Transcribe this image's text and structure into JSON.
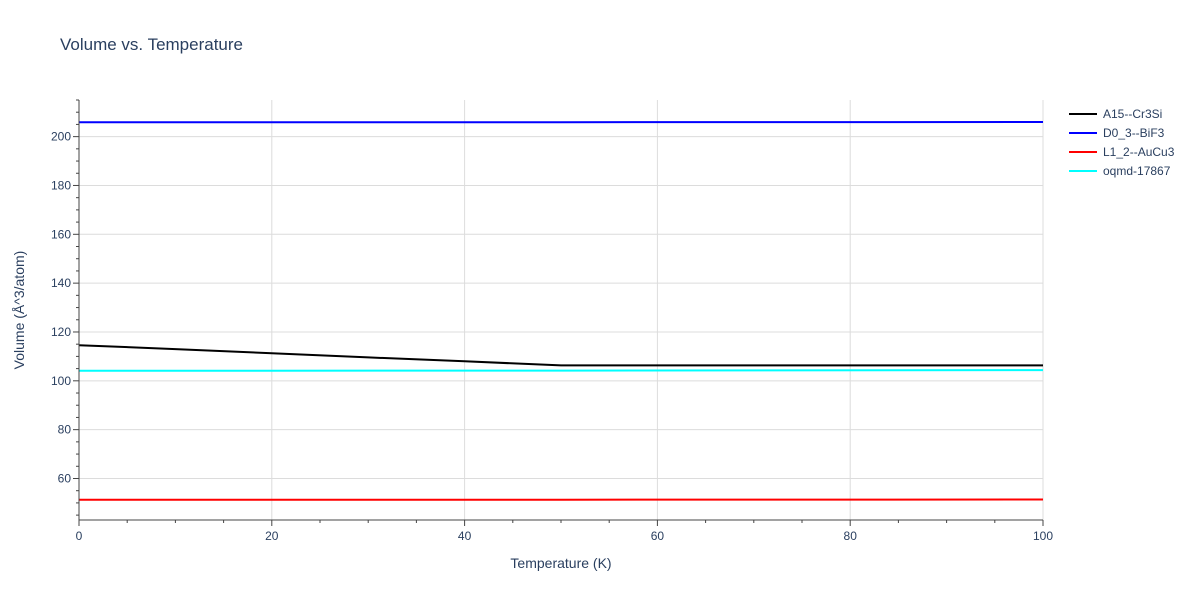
{
  "chart_data": {
    "type": "line",
    "title": "Volume vs. Temperature",
    "xlabel": "Temperature (K)",
    "ylabel": "Volume (Å^3/atom)",
    "xlim": [
      0,
      100
    ],
    "ylim": [
      43,
      215
    ],
    "xticks": [
      0,
      20,
      40,
      60,
      80,
      100
    ],
    "yticks": [
      60,
      80,
      100,
      120,
      140,
      160,
      180,
      200
    ],
    "grid": true,
    "legend_position": "top-right",
    "series": [
      {
        "name": "A15--Cr3Si",
        "color": "#000000",
        "x": [
          0,
          10,
          20,
          30,
          40,
          50,
          60,
          70,
          80,
          90,
          100
        ],
        "y": [
          114.6,
          113.0,
          111.3,
          109.6,
          108.0,
          106.3,
          106.3,
          106.3,
          106.3,
          106.3,
          106.3
        ]
      },
      {
        "name": "D0_3--BiF3",
        "color": "#0000ff",
        "x": [
          0,
          50,
          100
        ],
        "y": [
          205.9,
          205.9,
          206.0
        ]
      },
      {
        "name": "L1_2--AuCu3",
        "color": "#ff0000",
        "x": [
          0,
          50,
          100
        ],
        "y": [
          51.3,
          51.3,
          51.4
        ]
      },
      {
        "name": "oqmd-17867",
        "color": "#00ffff",
        "x": [
          0,
          50,
          100
        ],
        "y": [
          104.1,
          104.2,
          104.4
        ]
      }
    ]
  }
}
